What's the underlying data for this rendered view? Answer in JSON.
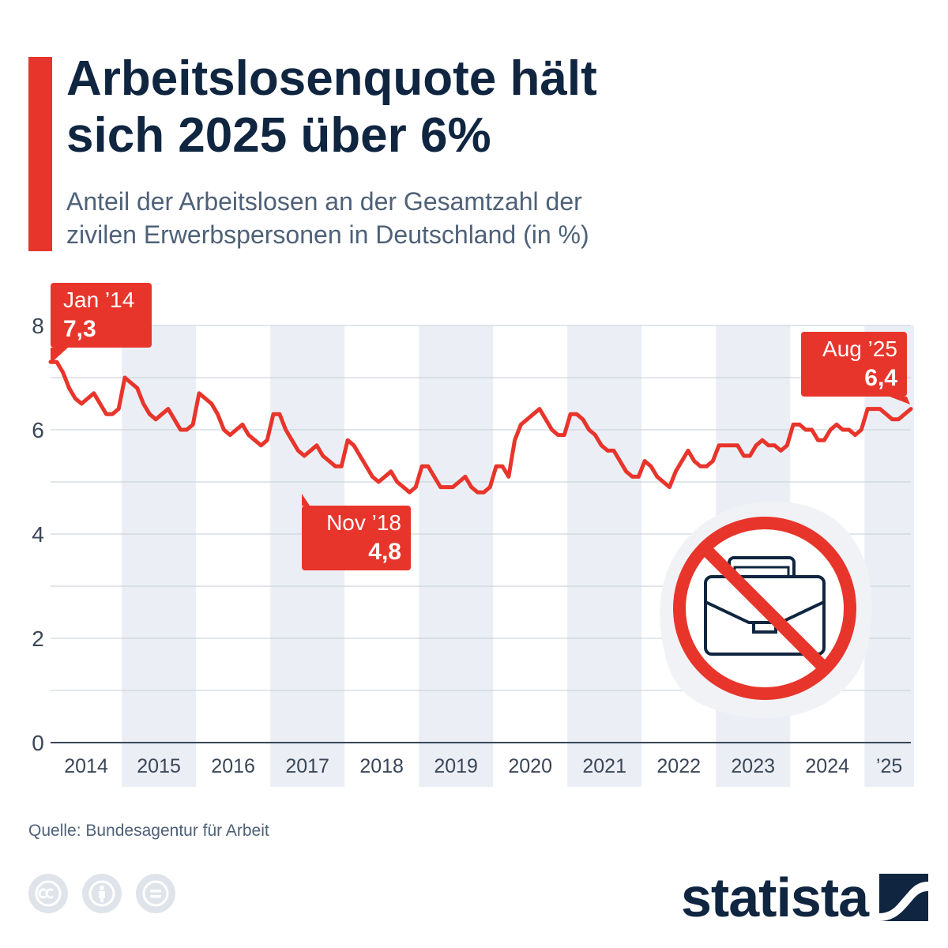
{
  "title_line1": "Arbeitslosenquote hält",
  "title_line2": "sich 2025 über 6%",
  "subtitle_line1": "Anteil der Arbeitslosen an der Gesamtzahl der",
  "subtitle_line2": "zivilen Erwerbspersonen in Deutschland (in %)",
  "source": "Quelle: Bundesagentur für Arbeit",
  "logo_text": "statista",
  "colors": {
    "accent": "#e8352b",
    "navy": "#0f2540",
    "band": "#ebeff5",
    "grid": "#c4ccd6",
    "axis": "#3a4658"
  },
  "icons": [
    "creative-commons-icon",
    "attribution-icon",
    "no-derivatives-icon",
    "statista-logo-icon",
    "no-briefcase-icon"
  ],
  "chart_data": {
    "type": "line",
    "title": "Arbeitslosenquote hält sich 2025 über 6%",
    "ylabel": "in %",
    "ylim": [
      0,
      8
    ],
    "yticks": [
      0,
      2,
      4,
      6,
      8
    ],
    "ytick_labels": [
      "0",
      "2",
      "4",
      "6",
      "8"
    ],
    "x_start": "2014-01",
    "x_end": "2025-08",
    "x_labels": [
      "2014",
      "2015",
      "2016",
      "2017",
      "2018",
      "2019",
      "2020",
      "2021",
      "2022",
      "2023",
      "2024",
      "’25"
    ],
    "series": [
      {
        "name": "Arbeitslosenquote",
        "values": [
          7.3,
          7.3,
          7.1,
          6.8,
          6.6,
          6.5,
          6.6,
          6.7,
          6.5,
          6.3,
          6.3,
          6.4,
          7.0,
          6.9,
          6.8,
          6.5,
          6.3,
          6.2,
          6.3,
          6.4,
          6.2,
          6.0,
          6.0,
          6.1,
          6.7,
          6.6,
          6.5,
          6.3,
          6.0,
          5.9,
          6.0,
          6.1,
          5.9,
          5.8,
          5.7,
          5.8,
          6.3,
          6.3,
          6.0,
          5.8,
          5.6,
          5.5,
          5.6,
          5.7,
          5.5,
          5.4,
          5.3,
          5.3,
          5.8,
          5.7,
          5.5,
          5.3,
          5.1,
          5.0,
          5.1,
          5.2,
          5.0,
          4.9,
          4.8,
          4.9,
          5.3,
          5.3,
          5.1,
          4.9,
          4.9,
          4.9,
          5.0,
          5.1,
          4.9,
          4.8,
          4.8,
          4.9,
          5.3,
          5.3,
          5.1,
          5.8,
          6.1,
          6.2,
          6.3,
          6.4,
          6.2,
          6.0,
          5.9,
          5.9,
          6.3,
          6.3,
          6.2,
          6.0,
          5.9,
          5.7,
          5.6,
          5.6,
          5.4,
          5.2,
          5.1,
          5.1,
          5.4,
          5.3,
          5.1,
          5.0,
          4.9,
          5.2,
          5.4,
          5.6,
          5.4,
          5.3,
          5.3,
          5.4,
          5.7,
          5.7,
          5.7,
          5.7,
          5.5,
          5.5,
          5.7,
          5.8,
          5.7,
          5.7,
          5.6,
          5.7,
          6.1,
          6.1,
          6.0,
          6.0,
          5.8,
          5.8,
          6.0,
          6.1,
          6.0,
          6.0,
          5.9,
          6.0,
          6.4,
          6.4,
          6.4,
          6.3,
          6.2,
          6.2,
          6.3,
          6.4
        ]
      }
    ],
    "annotations": [
      {
        "month": "Jan ’14",
        "value": "7,3",
        "index": 0
      },
      {
        "month": "Nov ’18",
        "value": "4,8",
        "index": 58
      },
      {
        "month": "Aug ’25",
        "value": "6,4",
        "index": 139
      }
    ]
  }
}
